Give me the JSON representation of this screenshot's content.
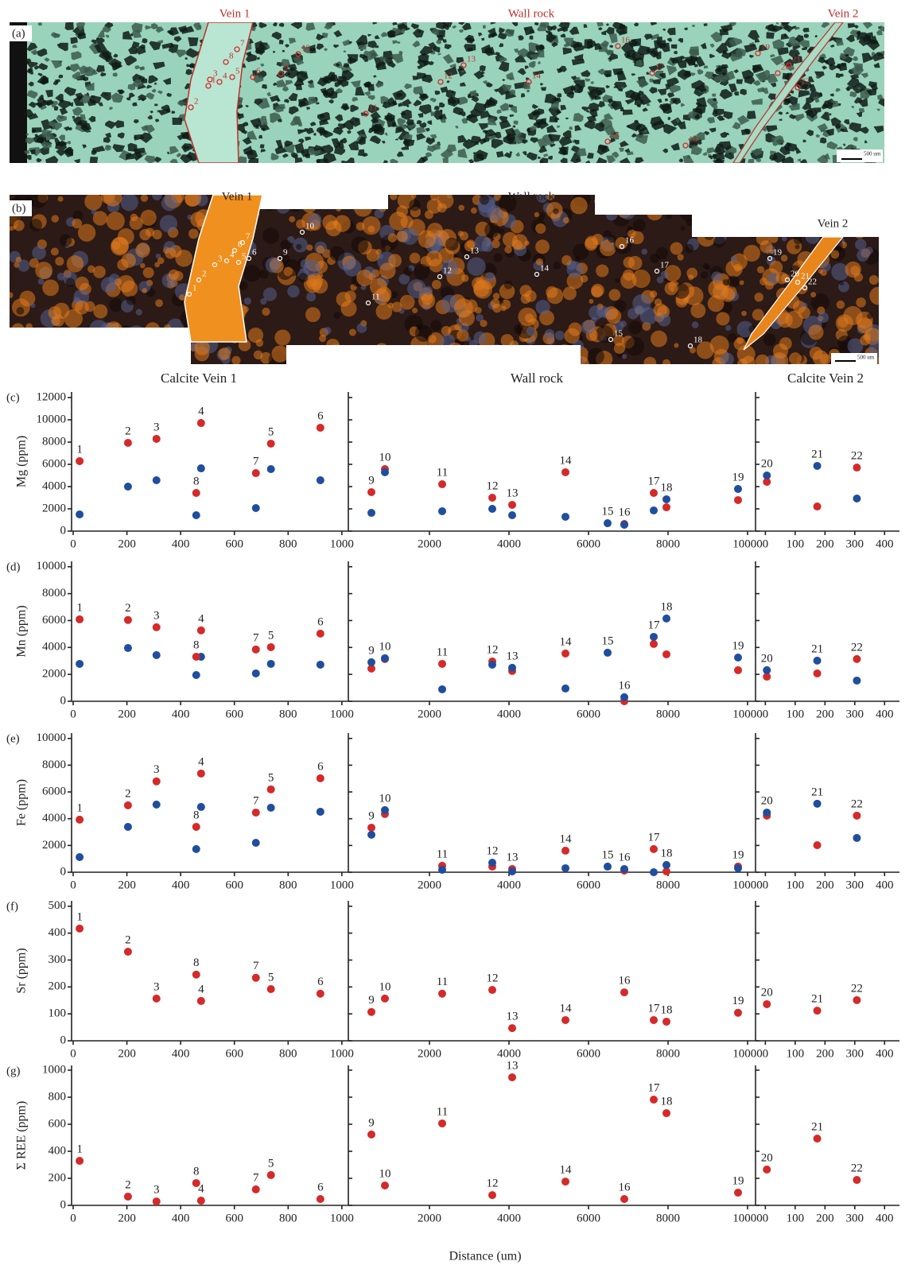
{
  "figure": {
    "section_titles": [
      "Calcite Vein 1",
      "Wall rock",
      "Calcite Vein 2"
    ],
    "x_label": "Distance (um)",
    "micrographs": [
      {
        "label": "(a)",
        "annotations": [
          "Vein 1",
          "Wall rock",
          "Vein 2"
        ],
        "scale": "500 um"
      },
      {
        "label": "(b)",
        "annotations": [
          "Vein 1",
          "Wall rock",
          "Vein 2"
        ],
        "scale": "500 um"
      }
    ],
    "sample_labels": [
      "1",
      "2",
      "3",
      "4",
      "5",
      "6",
      "7",
      "8",
      "9",
      "10",
      "11",
      "12",
      "13",
      "14",
      "15",
      "16",
      "17",
      "18",
      "19",
      "20",
      "21",
      "22"
    ]
  },
  "chart_data": [
    {
      "type": "scatter",
      "panel": "(c)",
      "y_label": "Mg (ppm)",
      "ylim": [
        0,
        12500
      ],
      "yticks": [
        0,
        2000,
        4000,
        6000,
        8000,
        10000,
        12000
      ],
      "sections": [
        {
          "xlim": [
            0,
            1030
          ],
          "xticks": [
            0,
            200,
            400,
            600,
            800,
            1000
          ],
          "x": [
            24,
            204,
            310,
            476,
            736,
            920,
            680,
            458
          ],
          "labels": [
            "1",
            "2",
            "3",
            "4",
            "5",
            "6",
            "7",
            "8"
          ],
          "series": [
            {
              "color": "#d42a2a",
              "values": [
                6290,
                7930,
                8290,
                9710,
                7860,
                9290,
                5210,
                3430
              ]
            },
            {
              "color": "#1f4e9c",
              "values": [
                1500,
                4000,
                4570,
                5640,
                5570,
                4570,
                2070,
                1430
              ]
            }
          ]
        },
        {
          "xlim": [
            0,
            10200
          ],
          "xticks": [
            2000,
            4000,
            6000,
            8000,
            10000
          ],
          "x": [
            540,
            880,
            2320,
            3580,
            4080,
            5420,
            6480,
            6900,
            7640,
            7960,
            9760
          ],
          "labels": [
            "9",
            "10",
            "11",
            "12",
            "13",
            "14",
            "15",
            "16",
            "17",
            "18",
            "19"
          ],
          "series": [
            {
              "color": "#d42a2a",
              "values": [
                3500,
                5570,
                4210,
                3000,
                2360,
                5290,
                null,
                640,
                3430,
                2140,
                2790
              ]
            },
            {
              "color": "#1f4e9c",
              "values": [
                1640,
                5290,
                1790,
                2000,
                1430,
                1290,
                710,
                570,
                1860,
                2860,
                3790
              ]
            }
          ]
        },
        {
          "xlim": [
            -25,
            450
          ],
          "xticks": [
            0,
            100,
            200,
            300,
            400
          ],
          "x": [
            5,
            174,
            307
          ],
          "labels": [
            "20",
            "21",
            "22"
          ],
          "series": [
            {
              "color": "#d42a2a",
              "values": [
                4430,
                2210,
                5710
              ]
            },
            {
              "color": "#1f4e9c",
              "values": [
                5000,
                5860,
                2930
              ]
            }
          ]
        }
      ]
    },
    {
      "type": "scatter",
      "panel": "(d)",
      "y_label": "Mn (ppm)",
      "ylim": [
        0,
        10400
      ],
      "yticks": [
        0,
        2000,
        4000,
        6000,
        8000,
        10000
      ],
      "sections": [
        {
          "xlim": [
            0,
            1030
          ],
          "xticks": [
            0,
            200,
            400,
            600,
            800,
            1000
          ],
          "x": [
            24,
            204,
            310,
            476,
            736,
            920,
            680,
            458
          ],
          "labels": [
            "1",
            "2",
            "3",
            "4",
            "5",
            "6",
            "7",
            "8"
          ],
          "series": [
            {
              "color": "#d42a2a",
              "values": [
                6090,
                6040,
                5500,
                5270,
                4020,
                5030,
                3850,
                3310
              ]
            },
            {
              "color": "#1f4e9c",
              "values": [
                2780,
                3960,
                3430,
                3310,
                2780,
                2720,
                2070,
                1950
              ]
            }
          ]
        },
        {
          "xlim": [
            0,
            10200
          ],
          "xticks": [
            2000,
            4000,
            6000,
            8000,
            10000
          ],
          "x": [
            540,
            880,
            2320,
            3580,
            4080,
            5420,
            6480,
            6900,
            7640,
            7960,
            9760
          ],
          "labels": [
            "9",
            "10",
            "11",
            "12",
            "13",
            "14",
            "15",
            "16",
            "17",
            "18",
            "19"
          ],
          "series": [
            {
              "color": "#d42a2a",
              "values": [
                2430,
                3140,
                2780,
                2960,
                2250,
                3550,
                null,
                0,
                4260,
                3490,
                2310
              ]
            },
            {
              "color": "#1f4e9c",
              "values": [
                2900,
                3200,
                890,
                2720,
                2490,
                950,
                3610,
                300,
                4790,
                6150,
                3250
              ]
            }
          ]
        },
        {
          "xlim": [
            -25,
            450
          ],
          "xticks": [
            0,
            100,
            200,
            300,
            400
          ],
          "x": [
            5,
            174,
            307
          ],
          "labels": [
            "20",
            "21",
            "22"
          ],
          "series": [
            {
              "color": "#d42a2a",
              "values": [
                1830,
                2070,
                3140
              ]
            },
            {
              "color": "#1f4e9c",
              "values": [
                2310,
                3020,
                1540
              ]
            }
          ]
        }
      ]
    },
    {
      "type": "scatter",
      "panel": "(e)",
      "y_label": "Fe (ppm)",
      "ylim": [
        0,
        10400
      ],
      "yticks": [
        0,
        2000,
        4000,
        6000,
        8000,
        10000
      ],
      "sections": [
        {
          "xlim": [
            0,
            1030
          ],
          "xticks": [
            0,
            200,
            400,
            600,
            800,
            1000
          ],
          "x": [
            24,
            204,
            310,
            476,
            736,
            920,
            680,
            458
          ],
          "labels": [
            "1",
            "2",
            "3",
            "4",
            "5",
            "6",
            "7",
            "8"
          ],
          "series": [
            {
              "color": "#d42a2a",
              "values": [
                3930,
                5000,
                6790,
                7380,
                6190,
                7020,
                4460,
                3390
              ]
            },
            {
              "color": "#1f4e9c",
              "values": [
                1130,
                3390,
                5060,
                4880,
                4820,
                4520,
                2200,
                1730
              ]
            }
          ]
        },
        {
          "xlim": [
            0,
            10200
          ],
          "xticks": [
            2000,
            4000,
            6000,
            8000,
            10000
          ],
          "x": [
            540,
            880,
            2320,
            3580,
            4080,
            5420,
            6480,
            6900,
            7640,
            7960,
            9760
          ],
          "labels": [
            "9",
            "10",
            "11",
            "12",
            "13",
            "14",
            "15",
            "16",
            "17",
            "18",
            "19"
          ],
          "series": [
            {
              "color": "#d42a2a",
              "values": [
                3330,
                4350,
                480,
                420,
                240,
                1610,
                null,
                120,
                1730,
                60,
                420
              ]
            },
            {
              "color": "#1f4e9c",
              "values": [
                2800,
                4640,
                180,
                710,
                60,
                300,
                420,
                240,
                0,
                540,
                300
              ]
            }
          ]
        },
        {
          "xlim": [
            -25,
            450
          ],
          "xticks": [
            0,
            100,
            200,
            300,
            400
          ],
          "x": [
            5,
            174,
            307
          ],
          "labels": [
            "20",
            "21",
            "22"
          ],
          "series": [
            {
              "color": "#d42a2a",
              "values": [
                4230,
                2020,
                4230
              ]
            },
            {
              "color": "#1f4e9c",
              "values": [
                4460,
                5120,
                2560
              ]
            }
          ]
        }
      ]
    },
    {
      "type": "scatter",
      "panel": "(f)",
      "y_label": "Sr (ppm)",
      "ylim": [
        0,
        520
      ],
      "yticks": [
        0,
        100,
        200,
        300,
        400,
        500
      ],
      "sections": [
        {
          "xlim": [
            0,
            1030
          ],
          "xticks": [
            0,
            200,
            400,
            600,
            800,
            1000
          ],
          "x": [
            24,
            204,
            310,
            476,
            736,
            920,
            680,
            458
          ],
          "labels": [
            "1",
            "2",
            "3",
            "4",
            "5",
            "6",
            "7",
            "8"
          ],
          "series": [
            {
              "color": "#d42a2a",
              "values": [
                417,
                331,
                157,
                148,
                192,
                175,
                234,
                246
              ]
            }
          ]
        },
        {
          "xlim": [
            0,
            10200
          ],
          "xticks": [
            2000,
            4000,
            6000,
            8000,
            10000
          ],
          "x": [
            540,
            880,
            2320,
            3580,
            4080,
            5420,
            6480,
            6900,
            7640,
            7960,
            9760
          ],
          "labels": [
            "9",
            "10",
            "11",
            "12",
            "13",
            "14",
            null,
            "16",
            "17",
            "18",
            "19"
          ],
          "series": [
            {
              "color": "#d42a2a",
              "values": [
                107,
                157,
                175,
                189,
                47,
                77,
                null,
                180,
                77,
                71,
                104
              ]
            }
          ]
        },
        {
          "xlim": [
            -25,
            450
          ],
          "xticks": [
            0,
            100,
            200,
            300,
            400
          ],
          "x": [
            5,
            174,
            307
          ],
          "labels": [
            "20",
            "21",
            "22"
          ],
          "series": [
            {
              "color": "#d42a2a",
              "values": [
                136,
                112,
                151
              ]
            }
          ]
        }
      ]
    },
    {
      "type": "scatter",
      "panel": "(g)",
      "y_label": "Σ REE (ppm)",
      "ylim": [
        0,
        1035
      ],
      "yticks": [
        0,
        200,
        400,
        600,
        800,
        1000
      ],
      "sections": [
        {
          "xlim": [
            0,
            1030
          ],
          "xticks": [
            0,
            200,
            400,
            600,
            800,
            1000
          ],
          "x": [
            24,
            204,
            310,
            476,
            736,
            920,
            680,
            458
          ],
          "labels": [
            "1",
            "2",
            "3",
            "4",
            "5",
            "6",
            "7",
            "8"
          ],
          "series": [
            {
              "color": "#d42a2a",
              "values": [
                329,
                65,
                29,
                35,
                224,
                47,
                118,
                165
              ]
            }
          ]
        },
        {
          "xlim": [
            0,
            10200
          ],
          "xticks": [
            2000,
            4000,
            6000,
            8000,
            10000
          ],
          "x": [
            540,
            880,
            2320,
            3580,
            4080,
            5420,
            6480,
            6900,
            7640,
            7960,
            9760
          ],
          "labels": [
            "9",
            "10",
            "11",
            "12",
            "13",
            "14",
            null,
            "16",
            "17",
            "18",
            "19"
          ],
          "series": [
            {
              "color": "#d42a2a",
              "values": [
                524,
                147,
                606,
                76,
                947,
                176,
                null,
                47,
                782,
                682,
                94
              ]
            }
          ]
        },
        {
          "xlim": [
            -25,
            450
          ],
          "xticks": [
            0,
            100,
            200,
            300,
            400
          ],
          "x": [
            5,
            174,
            307
          ],
          "labels": [
            "20",
            "21",
            "22"
          ],
          "series": [
            {
              "color": "#d42a2a",
              "values": [
                265,
                494,
                188
              ]
            }
          ]
        }
      ]
    }
  ]
}
